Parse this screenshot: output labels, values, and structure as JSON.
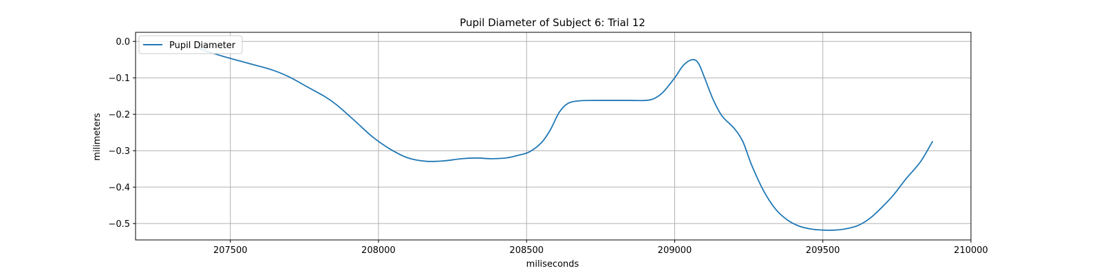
{
  "chart_data": {
    "type": "line",
    "title": "Pupil Diameter of Subject 6: Trial 12",
    "xlabel": "miliseconds",
    "ylabel": "milimeters",
    "xlim": [
      207180,
      210000
    ],
    "ylim": [
      -0.545,
      0.025
    ],
    "xticks": [
      207500,
      208000,
      208500,
      209000,
      209500,
      210000
    ],
    "xtick_labels": [
      "207500",
      "208000",
      "208500",
      "209000",
      "209500",
      "210000"
    ],
    "yticks": [
      0.0,
      -0.1,
      -0.2,
      -0.3,
      -0.4,
      -0.5
    ],
    "ytick_labels": [
      "0.0",
      "−0.1",
      "−0.2",
      "−0.3",
      "−0.4",
      "−0.5"
    ],
    "grid": true,
    "legend_position": "top-left",
    "series": [
      {
        "name": "Pupil Diameter",
        "color": "#1f77b4",
        "x": [
          207380,
          207420,
          207480,
          207560,
          207640,
          207700,
          207760,
          207820,
          207860,
          207920,
          207980,
          208040,
          208100,
          208160,
          208220,
          208280,
          208330,
          208380,
          208430,
          208470,
          208510,
          208550,
          208580,
          208610,
          208640,
          208680,
          208730,
          208800,
          208850,
          208900,
          208930,
          208960,
          209000,
          209030,
          209060,
          209080,
          209100,
          209130,
          209160,
          209200,
          209230,
          209260,
          209300,
          209340,
          209380,
          209420,
          209460,
          209500,
          209540,
          209580,
          209620,
          209660,
          209700,
          209740,
          209780,
          209830,
          209870
        ],
        "y": [
          -0.015,
          -0.027,
          -0.042,
          -0.06,
          -0.078,
          -0.098,
          -0.125,
          -0.152,
          -0.175,
          -0.218,
          -0.262,
          -0.296,
          -0.32,
          -0.329,
          -0.328,
          -0.322,
          -0.32,
          -0.322,
          -0.32,
          -0.313,
          -0.303,
          -0.278,
          -0.243,
          -0.195,
          -0.17,
          -0.163,
          -0.162,
          -0.162,
          -0.162,
          -0.162,
          -0.157,
          -0.14,
          -0.1,
          -0.065,
          -0.05,
          -0.06,
          -0.098,
          -0.16,
          -0.205,
          -0.238,
          -0.275,
          -0.34,
          -0.41,
          -0.46,
          -0.49,
          -0.507,
          -0.515,
          -0.518,
          -0.518,
          -0.514,
          -0.505,
          -0.485,
          -0.455,
          -0.42,
          -0.378,
          -0.33,
          -0.275
        ]
      }
    ]
  }
}
